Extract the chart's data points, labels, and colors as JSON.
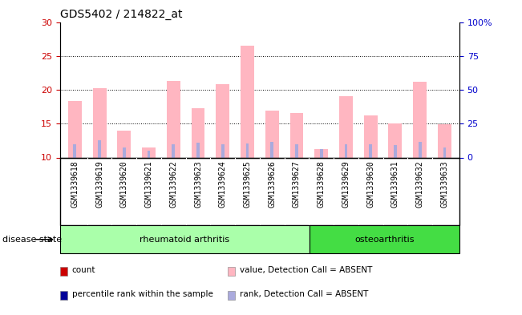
{
  "title": "GDS5402 / 214822_at",
  "samples": [
    "GSM1339618",
    "GSM1339619",
    "GSM1339620",
    "GSM1339621",
    "GSM1339622",
    "GSM1339623",
    "GSM1339624",
    "GSM1339625",
    "GSM1339626",
    "GSM1339627",
    "GSM1339628",
    "GSM1339629",
    "GSM1339630",
    "GSM1339631",
    "GSM1339632",
    "GSM1339633"
  ],
  "pink_values": [
    18.3,
    20.2,
    14.0,
    11.5,
    21.3,
    17.3,
    20.8,
    26.5,
    16.9,
    16.6,
    11.3,
    19.0,
    16.2,
    15.0,
    21.2,
    14.9
  ],
  "blue_values": [
    12.0,
    12.5,
    11.5,
    11.0,
    12.0,
    12.2,
    12.0,
    12.1,
    12.3,
    12.0,
    11.2,
    12.0,
    12.0,
    11.8,
    12.3,
    11.5
  ],
  "base_value": 10,
  "ylim_left": [
    10,
    30
  ],
  "ylim_right": [
    0,
    100
  ],
  "yticks_left": [
    10,
    15,
    20,
    25,
    30
  ],
  "yticks_right": [
    0,
    25,
    50,
    75,
    100
  ],
  "ytick_labels_right": [
    "0",
    "25",
    "50",
    "75",
    "100%"
  ],
  "grid_lines": [
    15,
    20,
    25
  ],
  "disease_groups": [
    {
      "label": "rheumatoid arthritis",
      "start": 0,
      "end": 10,
      "color": "#aaffaa"
    },
    {
      "label": "osteoarthritis",
      "start": 10,
      "end": 16,
      "color": "#44dd44"
    }
  ],
  "disease_state_label": "disease state",
  "left_axis_color": "#CC0000",
  "right_axis_color": "#0000CC",
  "bar_pink_color": "#FFB6C1",
  "bar_blue_color": "#AAAADD",
  "bar_red_color": "#CC0000",
  "bar_darkblue_color": "#000099",
  "legend_items": [
    {
      "label": "count",
      "color": "#CC0000"
    },
    {
      "label": "percentile rank within the sample",
      "color": "#000099"
    },
    {
      "label": "value, Detection Call = ABSENT",
      "color": "#FFB6C1"
    },
    {
      "label": "rank, Detection Call = ABSENT",
      "color": "#AAAADD"
    }
  ],
  "bar_width": 0.55,
  "bg_gray": "#D3D3D3",
  "xticklabel_fontsize": 7,
  "ytick_fontsize": 8
}
